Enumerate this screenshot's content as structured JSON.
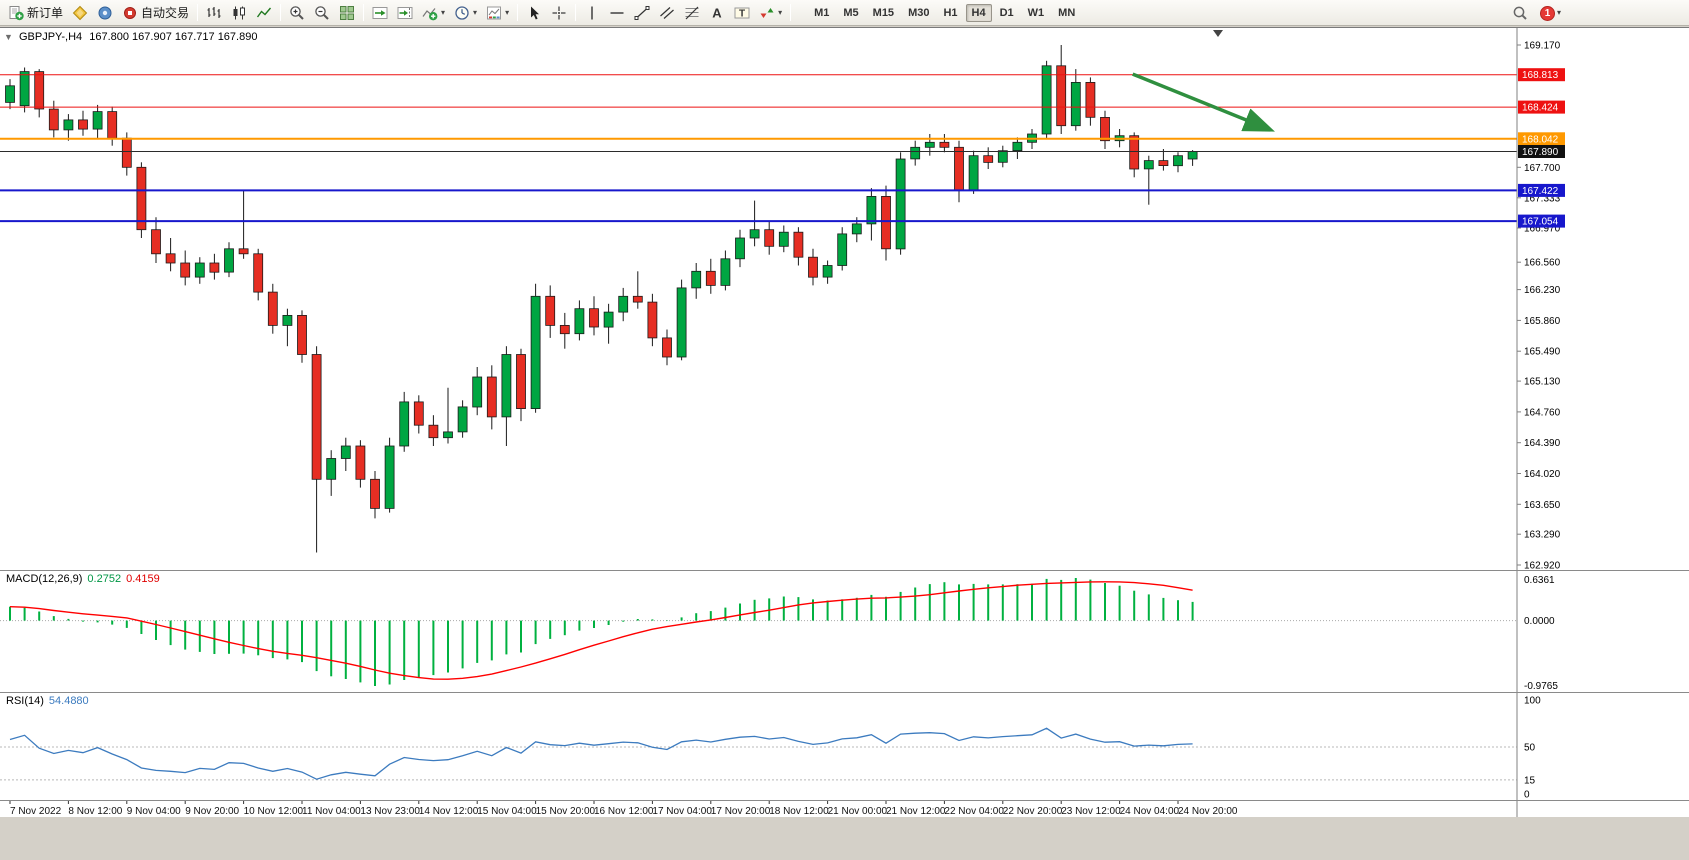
{
  "toolbar": {
    "items": [
      {
        "name": "new-order-button",
        "icon": "new-order-icon",
        "label": "新订单"
      },
      {
        "name": "metaeditor-button",
        "icon": "metaeditor-icon"
      },
      {
        "name": "market-watch-button",
        "icon": "market-watch-icon"
      },
      {
        "name": "autotrading-button",
        "icon": "autotrading-icon",
        "label": "自动交易"
      },
      {
        "sep": true
      },
      {
        "name": "bar-chart-button",
        "icon": "bar-chart-icon"
      },
      {
        "name": "candlestick-chart-button",
        "icon": "candlestick-icon"
      },
      {
        "name": "line-chart-button",
        "icon": "line-chart-icon"
      },
      {
        "sep": true
      },
      {
        "name": "zoom-in-button",
        "icon": "zoom-in-icon"
      },
      {
        "name": "zoom-out-button",
        "icon": "zoom-out-icon"
      },
      {
        "name": "tile-windows-button",
        "icon": "tile-windows-icon"
      },
      {
        "sep": true
      },
      {
        "name": "auto-scroll-button",
        "icon": "auto-scroll-icon"
      },
      {
        "name": "chart-shift-button",
        "icon": "chart-shift-icon"
      },
      {
        "name": "indicators-button",
        "icon": "indicators-icon",
        "dropdown": true
      },
      {
        "name": "periods-button",
        "icon": "clock-icon",
        "dropdown": true
      },
      {
        "name": "templates-button",
        "icon": "template-icon",
        "dropdown": true
      },
      {
        "sep": true
      },
      {
        "name": "cursor-button",
        "icon": "cursor-icon"
      },
      {
        "name": "crosshair-button",
        "icon": "crosshair-icon"
      },
      {
        "sep": true
      },
      {
        "name": "vertical-line-button",
        "icon": "vertical-line-icon"
      },
      {
        "name": "horizontal-line-button",
        "icon": "horizontal-line-icon"
      },
      {
        "name": "trendline-button",
        "icon": "trendline-icon"
      },
      {
        "name": "channel-button",
        "icon": "channel-icon"
      },
      {
        "name": "fibonacci-button",
        "icon": "fibonacci-icon"
      },
      {
        "name": "text-button",
        "icon": "text-icon"
      },
      {
        "name": "text-label-button",
        "icon": "text-label-icon"
      },
      {
        "name": "arrows-button",
        "icon": "arrows-icon",
        "dropdown": true
      },
      {
        "sep": true
      }
    ],
    "timeframes": [
      "M1",
      "M5",
      "M15",
      "M30",
      "H1",
      "H4",
      "D1",
      "W1",
      "MN"
    ],
    "active_timeframe": "H4",
    "notification_count": "1"
  },
  "chart": {
    "title": "GBPJPY-,H4",
    "ohlc_line": "167.800 167.907 167.717 167.890",
    "price_axis": [
      "169.170",
      "167.700",
      "167.333",
      "166.970",
      "166.560",
      "166.230",
      "165.860",
      "165.490",
      "165.130",
      "164.760",
      "164.390",
      "164.020",
      "163.650",
      "163.290",
      "162.920"
    ],
    "time_axis": [
      "7 Nov 2022",
      "8 Nov 12:00",
      "9 Nov 04:00",
      "9 Nov 20:00",
      "10 Nov 12:00",
      "11 Nov 04:00",
      "13 Nov 23:00",
      "14 Nov 12:00",
      "15 Nov 04:00",
      "15 Nov 20:00",
      "16 Nov 12:00",
      "17 Nov 04:00",
      "17 Nov 20:00",
      "18 Nov 12:00",
      "21 Nov 00:00",
      "21 Nov 12:00",
      "22 Nov 04:00",
      "22 Nov 20:00",
      "23 Nov 12:00",
      "24 Nov 04:00",
      "24 Nov 20:00"
    ],
    "current_price": {
      "value": 167.89,
      "label": "167.890",
      "color": "#2b2b2b"
    }
  },
  "chart_data": {
    "type": "candlestick",
    "symbol": "GBPJPY-",
    "timeframe": "H4",
    "title": "GBPJPY-,H4 167.800 167.907 167.717 167.890",
    "ylim": [
      162.92,
      169.17
    ],
    "up_color": "#00a642",
    "down_color": "#e62e23",
    "wick_color": "#1a1a1a",
    "ohlc": [
      [
        168.48,
        168.76,
        168.4,
        168.68
      ],
      [
        168.44,
        168.9,
        168.36,
        168.85
      ],
      [
        168.85,
        168.88,
        168.3,
        168.4
      ],
      [
        168.4,
        168.5,
        168.06,
        168.15
      ],
      [
        168.15,
        168.34,
        168.02,
        168.27
      ],
      [
        168.27,
        168.38,
        168.08,
        168.16
      ],
      [
        168.16,
        168.45,
        168.05,
        168.37
      ],
      [
        168.37,
        168.43,
        167.96,
        168.05
      ],
      [
        168.05,
        168.12,
        167.6,
        167.7
      ],
      [
        167.7,
        167.76,
        166.85,
        166.95
      ],
      [
        166.95,
        167.1,
        166.55,
        166.66
      ],
      [
        166.66,
        166.85,
        166.45,
        166.55
      ],
      [
        166.55,
        166.7,
        166.28,
        166.38
      ],
      [
        166.38,
        166.62,
        166.3,
        166.55
      ],
      [
        166.55,
        166.66,
        166.35,
        166.44
      ],
      [
        166.44,
        166.8,
        166.38,
        166.72
      ],
      [
        166.72,
        167.42,
        166.6,
        166.66
      ],
      [
        166.66,
        166.72,
        166.1,
        166.2
      ],
      [
        166.2,
        166.3,
        165.7,
        165.8
      ],
      [
        165.8,
        166.0,
        165.55,
        165.92
      ],
      [
        165.92,
        165.98,
        165.35,
        165.45
      ],
      [
        165.45,
        165.55,
        163.07,
        163.95
      ],
      [
        163.95,
        164.3,
        163.75,
        164.2
      ],
      [
        164.2,
        164.45,
        164.05,
        164.35
      ],
      [
        164.35,
        164.42,
        163.85,
        163.95
      ],
      [
        163.95,
        164.05,
        163.48,
        163.6
      ],
      [
        163.6,
        164.45,
        163.55,
        164.35
      ],
      [
        164.35,
        165.0,
        164.28,
        164.88
      ],
      [
        164.88,
        164.96,
        164.5,
        164.6
      ],
      [
        164.6,
        164.72,
        164.35,
        164.45
      ],
      [
        164.45,
        165.05,
        164.38,
        164.52
      ],
      [
        164.52,
        164.9,
        164.45,
        164.82
      ],
      [
        164.82,
        165.3,
        164.72,
        165.18
      ],
      [
        165.18,
        165.32,
        164.55,
        164.7
      ],
      [
        164.7,
        165.55,
        164.35,
        165.45
      ],
      [
        165.45,
        165.52,
        164.65,
        164.8
      ],
      [
        164.8,
        166.3,
        164.75,
        166.15
      ],
      [
        166.15,
        166.28,
        165.65,
        165.8
      ],
      [
        165.8,
        165.95,
        165.52,
        165.7
      ],
      [
        165.7,
        166.1,
        165.62,
        166.0
      ],
      [
        166.0,
        166.15,
        165.68,
        165.78
      ],
      [
        165.78,
        166.06,
        165.58,
        165.96
      ],
      [
        165.96,
        166.25,
        165.85,
        166.15
      ],
      [
        166.15,
        166.45,
        166.0,
        166.08
      ],
      [
        166.08,
        166.18,
        165.55,
        165.65
      ],
      [
        165.65,
        165.75,
        165.32,
        165.42
      ],
      [
        165.42,
        166.35,
        165.38,
        166.25
      ],
      [
        166.25,
        166.55,
        166.12,
        166.45
      ],
      [
        166.45,
        166.6,
        166.18,
        166.28
      ],
      [
        166.28,
        166.7,
        166.22,
        166.6
      ],
      [
        166.6,
        166.95,
        166.5,
        166.85
      ],
      [
        166.85,
        167.3,
        166.75,
        166.95
      ],
      [
        166.95,
        167.05,
        166.65,
        166.75
      ],
      [
        166.75,
        167.0,
        166.68,
        166.92
      ],
      [
        166.92,
        166.98,
        166.52,
        166.62
      ],
      [
        166.62,
        166.72,
        166.28,
        166.38
      ],
      [
        166.38,
        166.58,
        166.3,
        166.52
      ],
      [
        166.52,
        166.98,
        166.46,
        166.9
      ],
      [
        166.9,
        167.1,
        166.8,
        167.02
      ],
      [
        167.02,
        167.45,
        166.82,
        167.35
      ],
      [
        167.35,
        167.48,
        166.58,
        166.72
      ],
      [
        166.72,
        167.88,
        166.65,
        167.8
      ],
      [
        167.8,
        168.02,
        167.72,
        167.94
      ],
      [
        167.94,
        168.1,
        167.84,
        168.0
      ],
      [
        168.0,
        168.1,
        167.88,
        167.94
      ],
      [
        167.94,
        168.02,
        167.28,
        167.42
      ],
      [
        167.42,
        167.9,
        167.38,
        167.84
      ],
      [
        167.84,
        167.94,
        167.68,
        167.76
      ],
      [
        167.76,
        167.96,
        167.7,
        167.9
      ],
      [
        167.9,
        168.06,
        167.8,
        168.0
      ],
      [
        168.0,
        168.16,
        167.92,
        168.1
      ],
      [
        168.1,
        168.98,
        168.04,
        168.92
      ],
      [
        168.92,
        169.17,
        168.1,
        168.2
      ],
      [
        168.2,
        168.88,
        168.14,
        168.72
      ],
      [
        168.72,
        168.78,
        168.2,
        168.3
      ],
      [
        168.3,
        168.38,
        167.92,
        168.02
      ],
      [
        168.02,
        168.16,
        167.94,
        168.08
      ],
      [
        168.08,
        168.12,
        167.58,
        167.68
      ],
      [
        167.68,
        167.84,
        167.25,
        167.78
      ],
      [
        167.78,
        167.92,
        167.66,
        167.72
      ],
      [
        167.72,
        167.88,
        167.64,
        167.84
      ],
      [
        167.8,
        167.907,
        167.717,
        167.89
      ]
    ],
    "hlines": [
      {
        "price": 168.813,
        "label": "168.813",
        "color": "#ee1111",
        "width": 1
      },
      {
        "price": 168.424,
        "label": "168.424",
        "color": "#ee1111",
        "width": 1
      },
      {
        "price": 168.042,
        "label": "168.042",
        "color": "#ff9900",
        "width": 2
      },
      {
        "price": 167.422,
        "label": "167.422",
        "color": "#1717cc",
        "width": 2
      },
      {
        "price": 167.054,
        "label": "167.054",
        "color": "#1717cc",
        "width": 2
      }
    ],
    "annotations": [
      {
        "type": "arrow",
        "color": "#2f8f3f",
        "from": {
          "bar": 76.9,
          "price": 168.82
        },
        "to": {
          "bar": 86.2,
          "price": 168.16
        }
      }
    ]
  },
  "macd": {
    "name": "MACD(12,26,9)",
    "value_main": "0.2752",
    "value_signal": "0.4159",
    "scale_max": 0.6361,
    "scale_min": -0.9765,
    "axis_labels": [
      "0.6361",
      "0.0000",
      "-0.9765"
    ],
    "histogram_color": "#00b140",
    "signal_color": "#ff0000"
  },
  "rsi": {
    "name": "RSI(14)",
    "value": "54.4880",
    "period": 14,
    "levels": [
      50,
      15
    ],
    "axis_labels": [
      "100",
      "50",
      "15",
      "0"
    ],
    "line_color": "#3c7bbf"
  }
}
